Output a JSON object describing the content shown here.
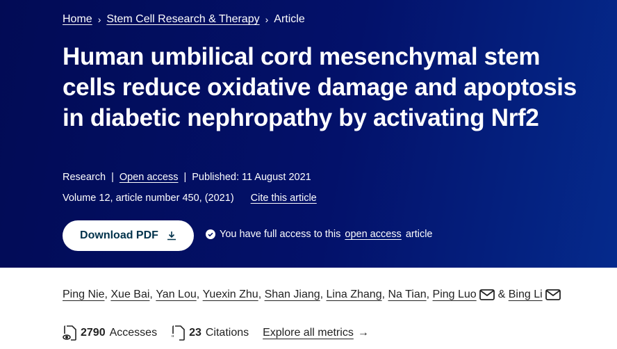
{
  "breadcrumb": {
    "items": [
      "Home",
      "Stem Cell Research & Therapy",
      "Article"
    ]
  },
  "article": {
    "title": "Human umbilical cord mesenchymal stem cells reduce oxidative damage and apoptosis in diabetic nephropathy by activating Nrf2",
    "type": "Research",
    "open_access": "Open access",
    "published": "Published: 11 August 2021",
    "volume": "Volume 12, article number 450, (2021)",
    "cite": "Cite this article"
  },
  "download": {
    "label": "Download PDF"
  },
  "access": {
    "prefix": "You have full access to this",
    "link": "open access",
    "suffix": "article"
  },
  "authors": [
    "Ping Nie",
    "Xue Bai",
    "Yan Lou",
    "Yuexin Zhu",
    "Shan Jiang",
    "Lina Zhang",
    "Na Tian",
    "Ping Luo",
    "Bing Li"
  ],
  "authors_amp": "&",
  "metrics": {
    "accesses_count": "2790",
    "accesses_label": "Accesses",
    "citations_count": "23",
    "citations_label": "Citations",
    "explore": "Explore all metrics"
  }
}
